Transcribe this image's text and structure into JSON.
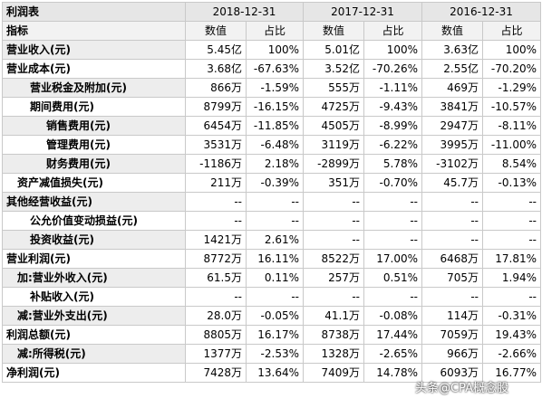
{
  "title": "利润表",
  "years": [
    "2018-12-31",
    "2017-12-31",
    "2016-12-31"
  ],
  "subheader": {
    "indicator": "指标",
    "value": "数值",
    "share": "占比"
  },
  "rows": [
    {
      "label": "营业收入(元)",
      "indent": 0,
      "cells": [
        "5.45亿",
        "100%",
        "5.01亿",
        "100%",
        "3.63亿",
        "100%"
      ]
    },
    {
      "label": "营业成本(元)",
      "indent": 0,
      "cells": [
        "3.68亿",
        "-67.63%",
        "3.52亿",
        "-70.26%",
        "2.55亿",
        "-70.20%"
      ]
    },
    {
      "label": "营业税金及附加(元)",
      "indent": 2,
      "cells": [
        "866万",
        "-1.59%",
        "555万",
        "-1.11%",
        "469万",
        "-1.29%"
      ]
    },
    {
      "label": "期间费用(元)",
      "indent": 2,
      "cells": [
        "8799万",
        "-16.15%",
        "4725万",
        "-9.43%",
        "3841万",
        "-10.57%"
      ]
    },
    {
      "label": "销售费用(元)",
      "indent": 3,
      "cells": [
        "6454万",
        "-11.85%",
        "4505万",
        "-8.99%",
        "2947万",
        "-8.11%"
      ]
    },
    {
      "label": "管理费用(元)",
      "indent": 3,
      "cells": [
        "3531万",
        "-6.48%",
        "3119万",
        "-6.22%",
        "3995万",
        "-11.00%"
      ]
    },
    {
      "label": "财务费用(元)",
      "indent": 3,
      "cells": [
        "-1186万",
        "2.18%",
        "-2899万",
        "5.78%",
        "-3102万",
        "8.54%"
      ]
    },
    {
      "label": "资产减值损失(元)",
      "indent": 1,
      "cells": [
        "211万",
        "-0.39%",
        "351万",
        "-0.70%",
        "45.7万",
        "-0.13%"
      ]
    },
    {
      "label": "其他经营收益(元)",
      "indent": 0,
      "cells": [
        "--",
        "--",
        "--",
        "--",
        "--",
        "--"
      ]
    },
    {
      "label": "公允价值变动损益(元)",
      "indent": 2,
      "cells": [
        "--",
        "--",
        "--",
        "--",
        "--",
        "--"
      ]
    },
    {
      "label": "投资收益(元)",
      "indent": 2,
      "cells": [
        "1421万",
        "2.61%",
        "--",
        "--",
        "--",
        "--"
      ]
    },
    {
      "label": "营业利润(元)",
      "indent": 0,
      "cells": [
        "8772万",
        "16.11%",
        "8522万",
        "17.00%",
        "6468万",
        "17.81%"
      ]
    },
    {
      "label": "加:营业外收入(元)",
      "indent": 1,
      "cells": [
        "61.5万",
        "0.11%",
        "257万",
        "0.51%",
        "705万",
        "1.94%"
      ]
    },
    {
      "label": "补贴收入(元)",
      "indent": 2,
      "cells": [
        "--",
        "--",
        "--",
        "--",
        "--",
        "--"
      ]
    },
    {
      "label": "减:营业外支出(元)",
      "indent": 1,
      "cells": [
        "28.0万",
        "-0.05%",
        "41.1万",
        "-0.08%",
        "114万",
        "-0.31%"
      ]
    },
    {
      "label": "利润总额(元)",
      "indent": 0,
      "cells": [
        "8805万",
        "16.17%",
        "8738万",
        "17.44%",
        "7059万",
        "19.43%"
      ]
    },
    {
      "label": "减:所得税(元)",
      "indent": 1,
      "cells": [
        "1377万",
        "-2.53%",
        "1328万",
        "-2.65%",
        "966万",
        "-2.66%"
      ]
    },
    {
      "label": "净利润(元)",
      "indent": 0,
      "cells": [
        "7428万",
        "13.64%",
        "7409万",
        "14.78%",
        "6093万",
        "16.77%"
      ]
    }
  ],
  "watermark": "头条@CPA概念股"
}
